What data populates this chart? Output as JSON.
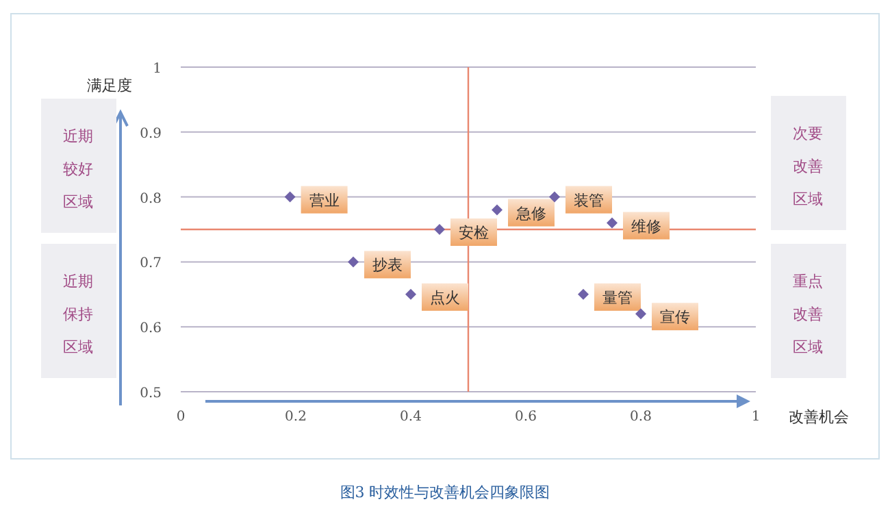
{
  "chart_data": {
    "type": "scatter",
    "title": "图3  时效性与改善机会四象限图",
    "xlabel": "改善机会",
    "ylabel": "满足度",
    "xlim": [
      0,
      1
    ],
    "ylim": [
      0.5,
      1
    ],
    "xticks": [
      0,
      0.2,
      0.4,
      0.6,
      0.8,
      1
    ],
    "yticks": [
      0.5,
      0.6,
      0.7,
      0.8,
      0.9,
      1
    ],
    "grid": "y",
    "marker": "diamond",
    "series": [
      {
        "color": "#6f62a8",
        "x": [
          0.19,
          0.3,
          0.4,
          0.45,
          0.55,
          0.65,
          0.75,
          0.7,
          0.8
        ],
        "values": [
          0.8,
          0.7,
          0.65,
          0.75,
          0.78,
          0.8,
          0.76,
          0.65,
          0.62
        ]
      }
    ],
    "ref_lines": [
      {
        "axis": "x",
        "value": 0.5,
        "color": "#e9876f"
      },
      {
        "axis": "y",
        "value": 0.75,
        "color": "#e9876f"
      }
    ],
    "annotations": [
      {
        "text": "营业",
        "x": 0.19,
        "y": 0.8
      },
      {
        "text": "抄表",
        "x": 0.3,
        "y": 0.7
      },
      {
        "text": "点火",
        "x": 0.4,
        "y": 0.65
      },
      {
        "text": "安检",
        "x": 0.45,
        "y": 0.75
      },
      {
        "text": "急修",
        "x": 0.55,
        "y": 0.78
      },
      {
        "text": "装管",
        "x": 0.65,
        "y": 0.8
      },
      {
        "text": "维修",
        "x": 0.75,
        "y": 0.76
      },
      {
        "text": "量管",
        "x": 0.7,
        "y": 0.65
      },
      {
        "text": "宣传",
        "x": 0.8,
        "y": 0.62
      },
      "近期较好区域",
      "近期保持区域",
      "次要改善区域",
      "重点改善区域"
    ]
  }
}
